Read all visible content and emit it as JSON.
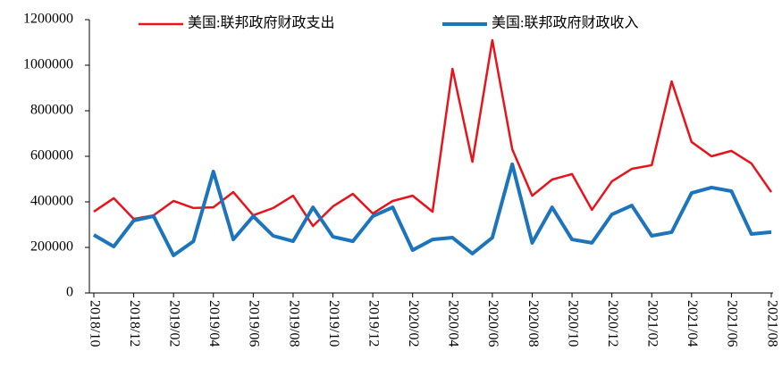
{
  "chart_data": {
    "type": "line",
    "categories": [
      "2018/10",
      null,
      "2018/12",
      null,
      "2019/02",
      null,
      "2019/04",
      null,
      "2019/06",
      null,
      "2019/08",
      null,
      "2019/10",
      null,
      "2019/12",
      null,
      "2020/02",
      null,
      "2020/04",
      null,
      "2020/06",
      null,
      "2020/08",
      null,
      "2020/10",
      null,
      "2020/12",
      null,
      "2021/02",
      null,
      "2021/04",
      null,
      "2021/06",
      null,
      "2021/08"
    ],
    "series": [
      {
        "name": "美国:联邦政府财政支出",
        "color": "#e8131b",
        "values": [
          357000,
          416000,
          325000,
          341000,
          404000,
          373000,
          376000,
          443000,
          341000,
          373000,
          427000,
          294000,
          380000,
          435000,
          349000,
          404000,
          427000,
          357000,
          984000,
          576000,
          1110000,
          631000,
          427000,
          498000,
          522000,
          365000,
          490000,
          545000,
          561000,
          929000,
          663000,
          600000,
          624000,
          569000,
          443000
        ]
      },
      {
        "name": "美国:联邦政府财政收入",
        "color": "#1c74bd",
        "values": [
          255000,
          204000,
          318000,
          337000,
          165000,
          227000,
          533000,
          235000,
          337000,
          251000,
          227000,
          376000,
          247000,
          227000,
          337000,
          376000,
          188000,
          235000,
          243000,
          173000,
          243000,
          565000,
          220000,
          376000,
          235000,
          220000,
          345000,
          384000,
          251000,
          267000,
          439000,
          463000,
          447000,
          259000,
          267000
        ]
      }
    ],
    "ylim": [
      0,
      1200000
    ],
    "yticks": [
      0,
      200000,
      400000,
      600000,
      800000,
      1000000,
      1200000
    ]
  }
}
